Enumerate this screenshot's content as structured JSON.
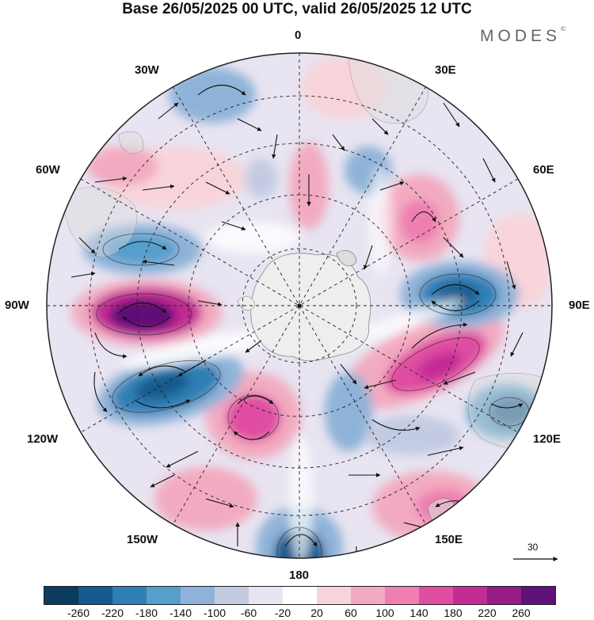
{
  "title": "Base 26/05/2025 00 UTC, valid 26/05/2025 12 UTC",
  "brand": {
    "text": "MODES",
    "mark": "©"
  },
  "longitude_labels": {
    "lon_0": "0",
    "lon_30e": "30E",
    "lon_60e": "60E",
    "lon_90e": "90E",
    "lon_120e": "120E",
    "lon_150e": "150E",
    "lon_180": "180",
    "lon_150w": "150W",
    "lon_120w": "120W",
    "lon_90w": "90W",
    "lon_60w": "60W",
    "lon_30w": "30W"
  },
  "vector_scale": {
    "label": "30"
  },
  "colorbar": {
    "colors": [
      "#0b3b5e",
      "#145a8c",
      "#2e7fb5",
      "#559fcc",
      "#8fb3d8",
      "#c3cbe2",
      "#e8e4f1",
      "#ffffff",
      "#f8d4da",
      "#f2aac0",
      "#ee7fb0",
      "#e04ea2",
      "#c22c94",
      "#951b86",
      "#5e1178"
    ],
    "ticks": [
      "-260",
      "-220",
      "-180",
      "-140",
      "-100",
      "-60",
      "-20",
      "20",
      "60",
      "100",
      "140",
      "180",
      "220",
      "260"
    ]
  }
}
